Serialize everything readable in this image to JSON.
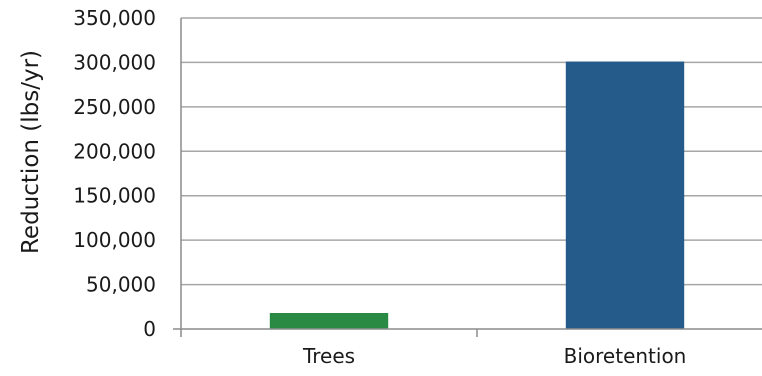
{
  "chart_data": {
    "type": "bar",
    "categories": [
      "Trees",
      "Bioretention"
    ],
    "values": [
      18000,
      301000
    ],
    "colors": [
      "#2a8a43",
      "#245b8b"
    ],
    "title": "",
    "xlabel": "",
    "ylabel": "Reduction (lbs/yr)",
    "ylim": [
      0,
      350000
    ],
    "yticks": [
      0,
      50000,
      100000,
      150000,
      200000,
      250000,
      300000,
      350000
    ],
    "ytick_labels": [
      "0",
      "50,000",
      "100,000",
      "150,000",
      "200,000",
      "250,000",
      "300,000",
      "350,000"
    ],
    "grid": true,
    "legend": "none"
  }
}
